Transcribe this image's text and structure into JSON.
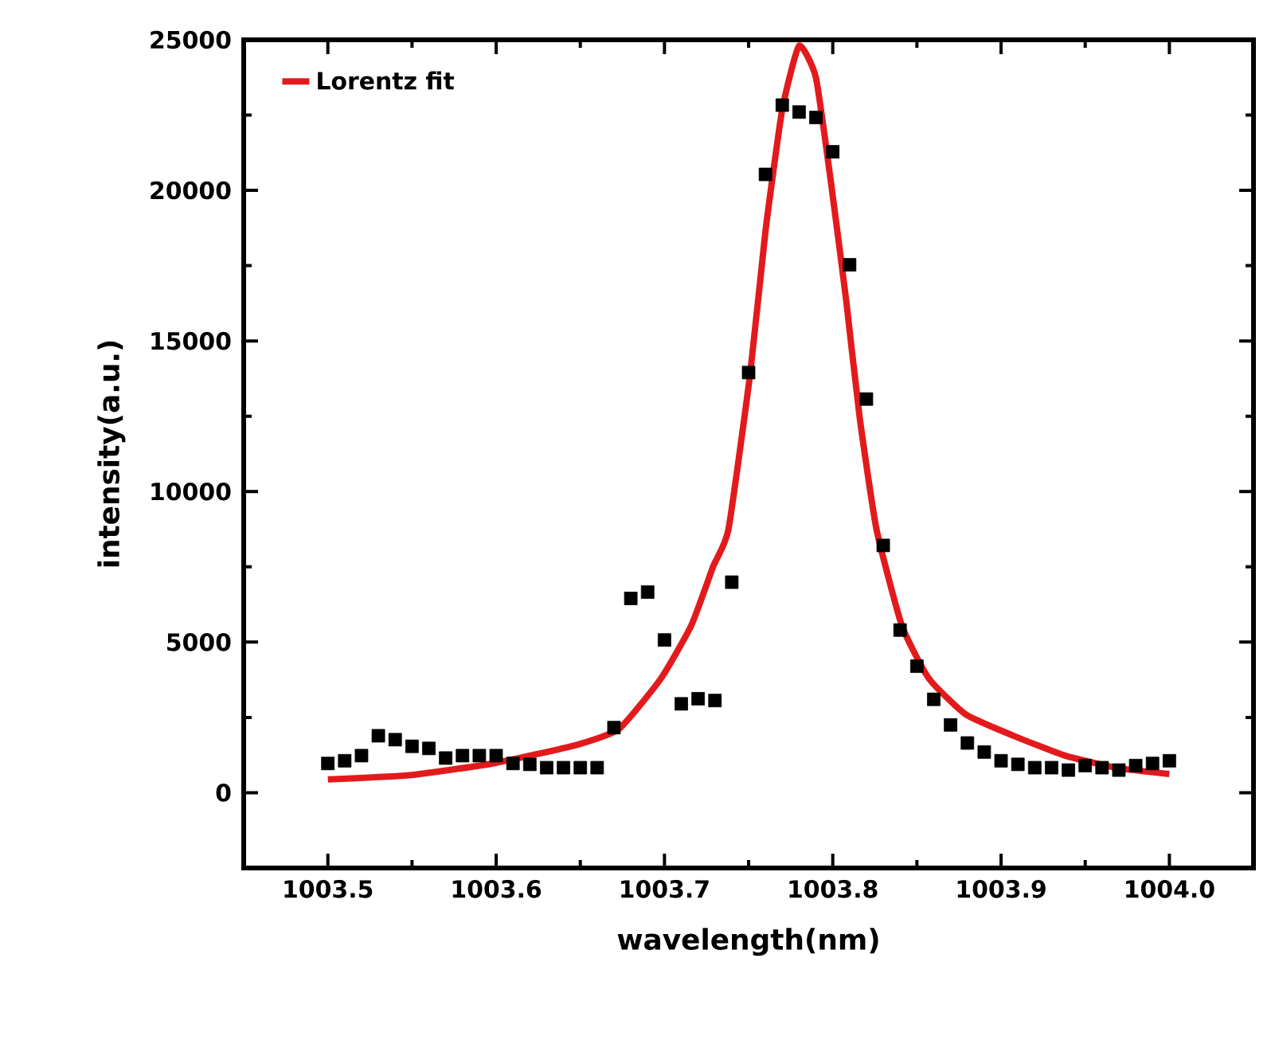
{
  "chart_data": {
    "type": "scatter",
    "xlabel": "wavelength(nm)",
    "ylabel": "intensity(a.u.)",
    "xlim": [
      1003.45,
      1004.05
    ],
    "ylim": [
      -2500,
      25000
    ],
    "xticks": [
      {
        "value": 1003.5,
        "label": "1003.5"
      },
      {
        "value": 1003.6,
        "label": "1003.6"
      },
      {
        "value": 1003.7,
        "label": "1003.7"
      },
      {
        "value": 1003.8,
        "label": "1003.8"
      },
      {
        "value": 1003.9,
        "label": "1003.9"
      },
      {
        "value": 1004.0,
        "label": "1004.0"
      }
    ],
    "yticks": [
      0,
      5000,
      10000,
      15000,
      20000,
      25000
    ],
    "grid": false,
    "legend": "top left",
    "series": [
      {
        "marker": "square",
        "color": "#000000",
        "x": [
          1003.5,
          1003.51,
          1003.52,
          1003.53,
          1003.54,
          1003.55,
          1003.56,
          1003.57,
          1003.58,
          1003.59,
          1003.6,
          1003.61,
          1003.62,
          1003.63,
          1003.64,
          1003.65,
          1003.66,
          1003.67,
          1003.68,
          1003.69,
          1003.7,
          1003.71,
          1003.72,
          1003.73,
          1003.74,
          1003.75,
          1003.76,
          1003.77,
          1003.78,
          1003.79,
          1003.8,
          1003.81,
          1003.82,
          1003.83,
          1003.84,
          1003.85,
          1003.86,
          1003.87,
          1003.88,
          1003.89,
          1003.9,
          1003.91,
          1003.92,
          1003.93,
          1003.94,
          1003.95,
          1003.96,
          1003.97,
          1003.98,
          1003.99,
          1004.0
        ],
        "values": [
          970,
          1060,
          1230,
          1890,
          1760,
          1540,
          1470,
          1150,
          1230,
          1230,
          1230,
          970,
          940,
          830,
          830,
          830,
          830,
          2160,
          6450,
          6660,
          5070,
          2950,
          3120,
          3060,
          6990,
          13950,
          20530,
          22830,
          22600,
          22420,
          21280,
          17530,
          13070,
          8210,
          5400,
          4200,
          3100,
          2250,
          1650,
          1350,
          1060,
          940,
          830,
          830,
          750,
          900,
          830,
          750,
          900,
          970,
          1060
        ]
      },
      {
        "type": "line",
        "marker": "none",
        "name": "Lorentz fit",
        "color": "#e31a1c",
        "x": [
          1003.5,
          1003.548,
          1003.598,
          1003.648,
          1003.673,
          1003.698,
          1003.716,
          1003.729,
          1003.738,
          1003.751,
          1003.76,
          1003.77,
          1003.78,
          1003.79,
          1003.799,
          1003.808,
          1003.816,
          1003.826,
          1003.841,
          1003.857,
          1003.879,
          1003.907,
          1003.938,
          1003.969,
          1004.0
        ],
        "values": [
          440,
          580,
          970,
          1590,
          2120,
          3800,
          5560,
          7520,
          8740,
          13950,
          18640,
          22690,
          24800,
          23740,
          20230,
          16330,
          12450,
          8740,
          5560,
          3800,
          2600,
          1900,
          1230,
          820,
          620
        ]
      }
    ]
  }
}
